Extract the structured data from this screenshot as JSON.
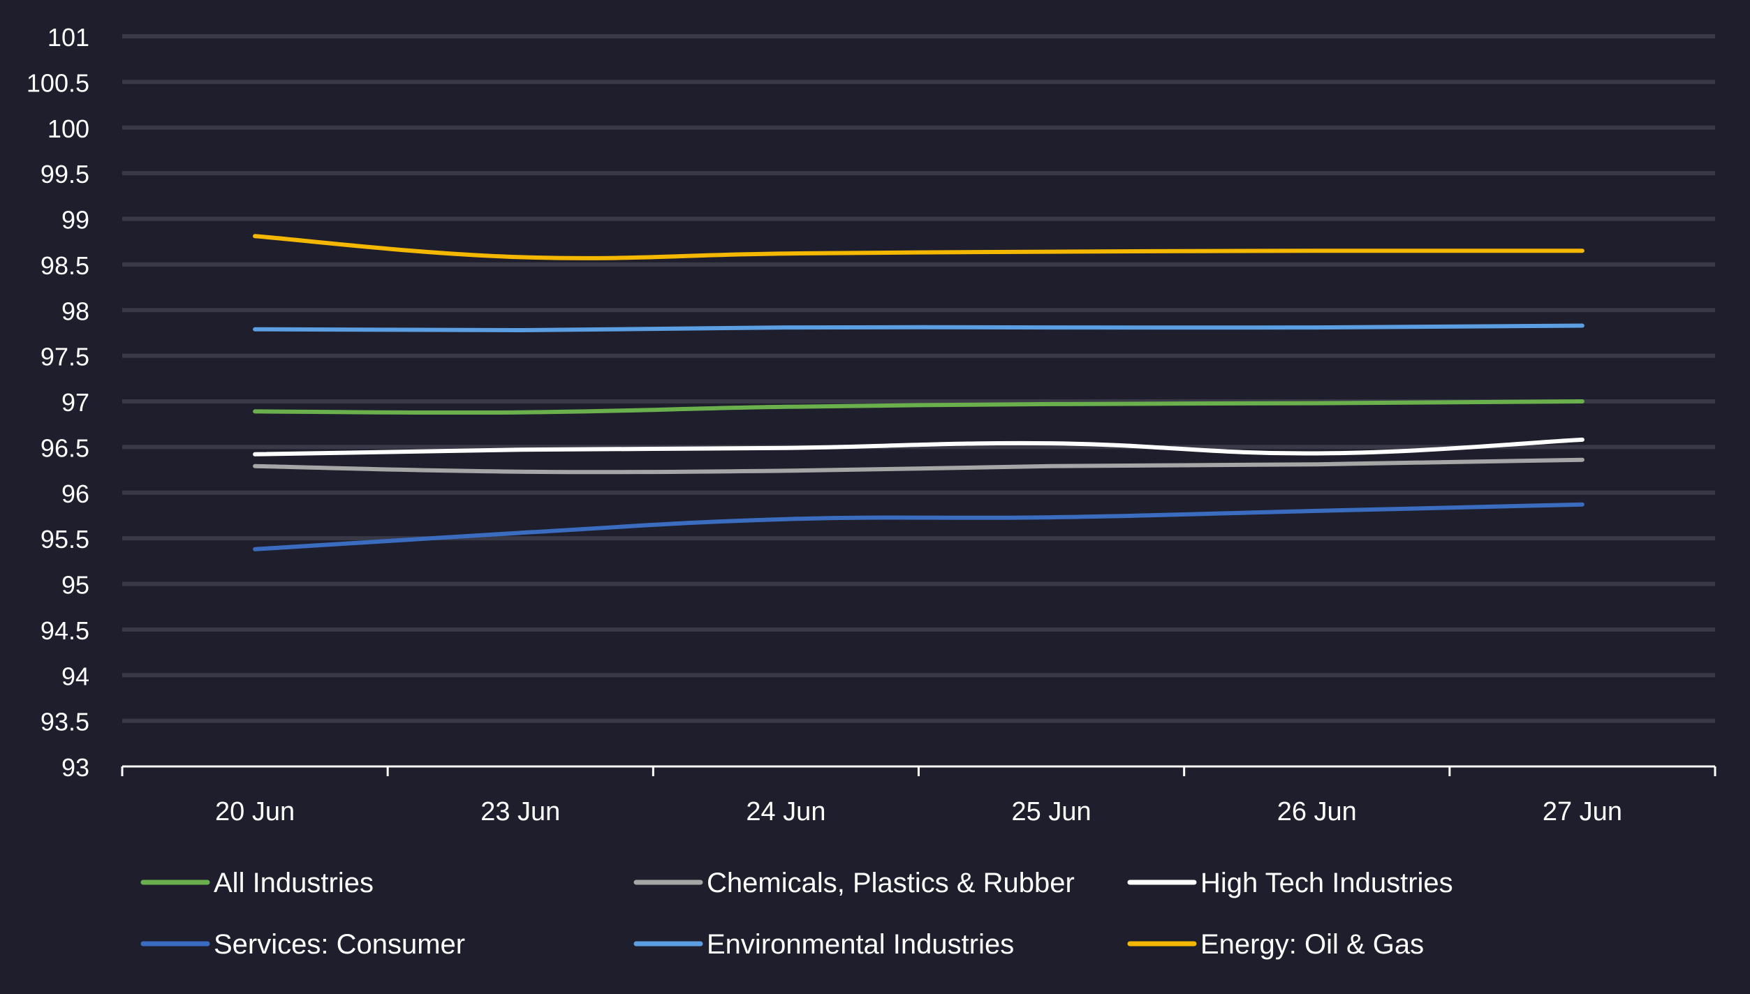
{
  "chart_data": {
    "type": "line",
    "title": "",
    "xlabel": "",
    "ylabel": "",
    "categories": [
      "20 Jun",
      "23 Jun",
      "24 Jun",
      "25 Jun",
      "26 Jun",
      "27 Jun"
    ],
    "ylim": [
      93,
      101
    ],
    "y_ticks": [
      "93",
      "93.5",
      "94",
      "94.5",
      "95",
      "95.5",
      "96",
      "96.5",
      "97",
      "97.5",
      "98",
      "98.5",
      "99",
      "99.5",
      "100",
      "100.5",
      "101"
    ],
    "grid": true,
    "legend_position": "bottom",
    "background_color": "#1f1e2c",
    "grid_color": "#3a3947",
    "axis_color": "#ffffff",
    "text_color": "#ffffff",
    "series": [
      {
        "name": "All Industries",
        "color": "#6ab04c",
        "values": [
          96.89,
          96.88,
          96.94,
          96.97,
          96.98,
          97.0
        ]
      },
      {
        "name": "Chemicals, Plastics & Rubber",
        "color": "#a6a6a6",
        "values": [
          96.29,
          96.23,
          96.24,
          96.29,
          96.31,
          96.36
        ]
      },
      {
        "name": "High Tech Industries",
        "color": "#ffffff",
        "values": [
          96.42,
          96.47,
          96.49,
          96.54,
          96.43,
          96.58
        ]
      },
      {
        "name": "Services: Consumer",
        "color": "#3a6cc0",
        "values": [
          95.38,
          95.56,
          95.71,
          95.73,
          95.8,
          95.87
        ]
      },
      {
        "name": "Environmental Industries",
        "color": "#5b9ee1",
        "values": [
          97.79,
          97.78,
          97.81,
          97.81,
          97.81,
          97.83
        ]
      },
      {
        "name": "Energy: Oil & Gas",
        "color": "#f5b800",
        "values": [
          98.81,
          98.58,
          98.62,
          98.64,
          98.65,
          98.65
        ]
      }
    ]
  }
}
